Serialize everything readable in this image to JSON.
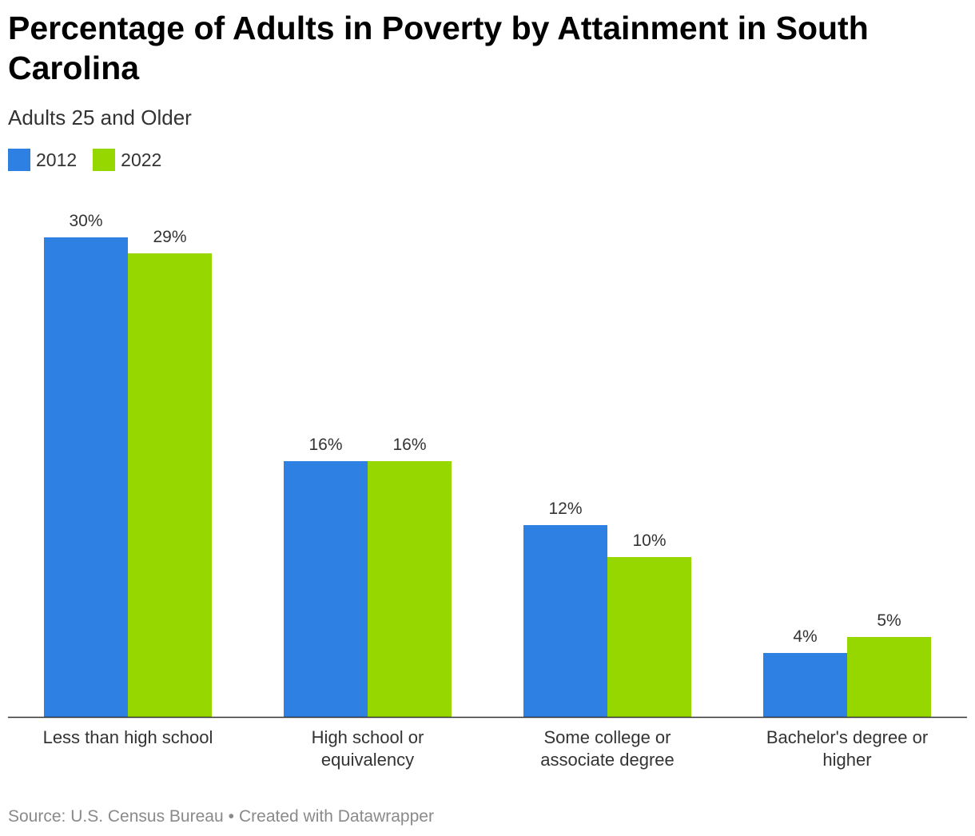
{
  "header": {
    "title": "Percentage of Adults in Poverty by Attainment in South Carolina",
    "subtitle": "Adults 25 and Older"
  },
  "footer": {
    "source": "Source: U.S. Census Bureau",
    "separator": "•",
    "credit": "Created with Datawrapper"
  },
  "colors": {
    "series_2012": "#2f80e3",
    "series_2022": "#97d700",
    "axis": "#333333",
    "label_text": "#333333"
  },
  "chart_data": {
    "type": "bar",
    "title": "Percentage of Adults in Poverty by Attainment in South Carolina",
    "subtitle": "Adults 25 and Older",
    "categories": [
      [
        "Less than high school"
      ],
      [
        "High school or",
        "equivalency"
      ],
      [
        "Some college or",
        "associate degree"
      ],
      [
        "Bachelor's degree or",
        "higher"
      ]
    ],
    "series": [
      {
        "name": "2012",
        "values": [
          30,
          16,
          12,
          4
        ],
        "labels": [
          "30%",
          "16%",
          "12%",
          "4%"
        ]
      },
      {
        "name": "2022",
        "values": [
          29,
          16,
          10,
          5
        ],
        "labels": [
          "29%",
          "16%",
          "10%",
          "5%"
        ]
      }
    ],
    "ylim": [
      0,
      30
    ],
    "grid": false,
    "legend": "top-left",
    "value_unit": "%"
  }
}
